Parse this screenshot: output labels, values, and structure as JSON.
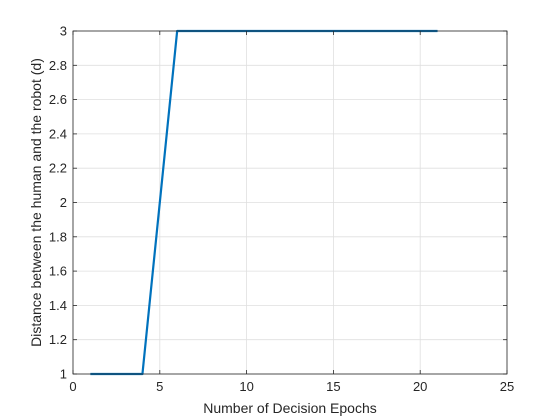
{
  "chart_data": {
    "type": "line",
    "title": "",
    "xlabel": "Number of Decision Epochs",
    "ylabel": "Distance between the human and the robot (d)",
    "xlim": [
      0,
      25
    ],
    "ylim": [
      1,
      3
    ],
    "xticks": [
      0,
      5,
      10,
      15,
      20,
      25
    ],
    "yticks": [
      1,
      1.2,
      1.4,
      1.6,
      1.8,
      2,
      2.2,
      2.4,
      2.6,
      2.8,
      3
    ],
    "xtick_labels": [
      "0",
      "5",
      "10",
      "15",
      "20",
      "25"
    ],
    "ytick_labels": [
      "1",
      "1.2",
      "1.4",
      "1.6",
      "1.8",
      "2",
      "2.2",
      "2.4",
      "2.6",
      "2.8",
      "3"
    ],
    "grid": true,
    "series": [
      {
        "color": "#0072BD",
        "x": [
          1,
          2,
          3,
          4,
          5,
          6,
          7,
          8,
          9,
          10,
          11,
          12,
          13,
          14,
          15,
          16,
          17,
          18,
          19,
          20,
          21
        ],
        "y": [
          1,
          1,
          1,
          1,
          2,
          3,
          3,
          3,
          3,
          3,
          3,
          3,
          3,
          3,
          3,
          3,
          3,
          3,
          3,
          3,
          3
        ]
      }
    ]
  }
}
